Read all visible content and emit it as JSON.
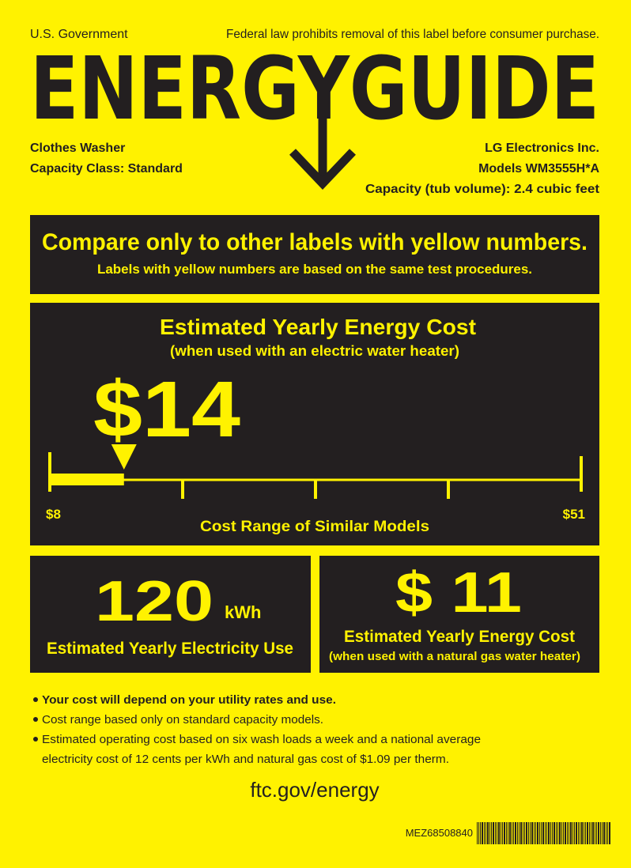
{
  "header": {
    "government": "U.S. Government",
    "notice": "Federal law prohibits removal of this label before consumer purchase.",
    "title": "ENERGYGUIDE"
  },
  "product": {
    "type": "Clothes Washer",
    "capacity_class": "Capacity Class: Standard",
    "manufacturer": "LG Electronics Inc.",
    "model": "Models WM3555H*A",
    "capacity": "Capacity (tub volume): 2.4 cubic feet"
  },
  "compare": {
    "heading": "Compare only to other labels with yellow numbers.",
    "subheading": "Labels with yellow numbers are based on the same test procedures."
  },
  "electric_cost": {
    "heading": "Estimated Yearly Energy Cost",
    "subheading": "(when used with an electric water heater)",
    "cost": {
      "value": 14,
      "label": "$14"
    },
    "range": {
      "min": {
        "value": 8,
        "label": "$8"
      },
      "max": {
        "value": 51,
        "label": "$51"
      },
      "caption": "Cost Range of Similar Models"
    }
  },
  "electricity_use": {
    "value": "120",
    "unit": "kWh",
    "caption": "Estimated Yearly Electricity Use"
  },
  "gas_cost": {
    "value": "$ 11",
    "caption": "Estimated Yearly Energy Cost",
    "subcaption": "(when used with a natural gas water heater)"
  },
  "notes": [
    "Your cost will depend on your utility rates and use.",
    "Cost range based only on standard capacity models.",
    [
      "Estimated operating cost based on six wash loads a week and a national average",
      "electricity cost of 12 cents per kWh and natural gas cost of $1.09 per therm."
    ]
  ],
  "footer": {
    "url": "ftc.gov/energy",
    "part_number": "MEZ68508840"
  }
}
